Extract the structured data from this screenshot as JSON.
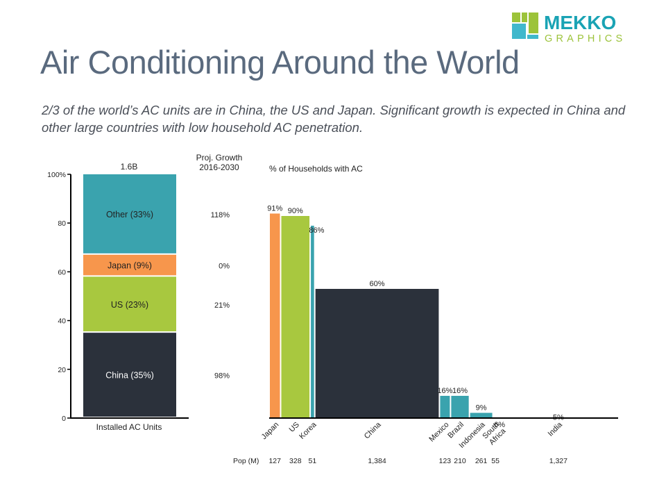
{
  "header": {
    "title": "Air Conditioning Around the World",
    "subtitle": "2/3 of the world’s AC units are in China, the US and Japan. Significant growth is expected in China and other large countries with low household AC penetration.",
    "logo_top": "MEKKO",
    "logo_bottom": "GRAPHICS"
  },
  "colors": {
    "china": "#2b313b",
    "us": "#a8c83f",
    "japan": "#f7964c",
    "other": "#3aa3ae",
    "title": "#5a6a7e",
    "logo_teal": "#1aa3b4",
    "logo_green": "#9cc33a"
  },
  "chart_data": [
    {
      "type": "bar",
      "subtype": "100%-stacked",
      "title": "1.6B",
      "xlabel": "Installed AC Units",
      "ylim": [
        0,
        100
      ],
      "yticks": [
        "0",
        "20",
        "40",
        "60",
        "80",
        "100%"
      ],
      "segments": [
        {
          "name": "China",
          "label": "China (35%)",
          "value": 35,
          "growth": "98%",
          "color": "#2b313b",
          "text_color": "#ffffff"
        },
        {
          "name": "US",
          "label": "US (23%)",
          "value": 23,
          "growth": "21%",
          "color": "#a8c83f",
          "text_color": "#222222"
        },
        {
          "name": "Japan",
          "label": "Japan (9%)",
          "value": 9,
          "growth": "0%",
          "color": "#f7964c",
          "text_color": "#222222"
        },
        {
          "name": "Other",
          "label": "Other (33%)",
          "value": 33,
          "growth": "118%",
          "color": "#3aa3ae",
          "text_color": "#222222"
        }
      ],
      "growth_header": [
        "Proj. Growth",
        "2016-2030"
      ]
    },
    {
      "type": "bar",
      "subtype": "variable-width (marimekko)",
      "title": "% of Households with AC",
      "width_measure_label": "Pop (M)",
      "ylim": [
        0,
        100
      ],
      "countries": [
        {
          "name": "Japan",
          "lines": [
            "Japan"
          ],
          "pop": 127,
          "pop_label": "127",
          "pct": 91,
          "pct_label": "91%",
          "color": "#f7964c"
        },
        {
          "name": "US",
          "lines": [
            "US"
          ],
          "pop": 328,
          "pop_label": "328",
          "pct": 90,
          "pct_label": "90%",
          "color": "#a8c83f"
        },
        {
          "name": "Korea",
          "lines": [
            "Korea"
          ],
          "pop": 51,
          "pop_label": "51",
          "pct": 86,
          "pct_label": "86%",
          "color": "#3aa3ae"
        },
        {
          "name": "China",
          "lines": [
            "China"
          ],
          "pop": 1384,
          "pop_label": "1,384",
          "pct": 60,
          "pct_label": "60%",
          "color": "#2b313b"
        },
        {
          "name": "Mexico",
          "lines": [
            "Mexico"
          ],
          "pop": 123,
          "pop_label": "123",
          "pct": 16,
          "pct_label": "16%",
          "color": "#3aa3ae"
        },
        {
          "name": "Brazil",
          "lines": [
            "Brazil"
          ],
          "pop": 210,
          "pop_label": "210",
          "pct": 16,
          "pct_label": "16%",
          "color": "#3aa3ae"
        },
        {
          "name": "Indonesia",
          "lines": [
            "Indonesia"
          ],
          "pop": 261,
          "pop_label": "261",
          "pct": 9,
          "pct_label": "9%",
          "color": "#3aa3ae"
        },
        {
          "name": "South Africa",
          "lines": [
            "South",
            "Africa"
          ],
          "pop": 55,
          "pop_label": "55",
          "pct": 6,
          "pct_label": "6%",
          "color": "#3aa3ae"
        },
        {
          "name": "India",
          "lines": [
            "India"
          ],
          "pop": 1327,
          "pop_label": "1,327",
          "pct": 5,
          "pct_label": "5%",
          "color": "#3aa3ae"
        }
      ]
    }
  ]
}
